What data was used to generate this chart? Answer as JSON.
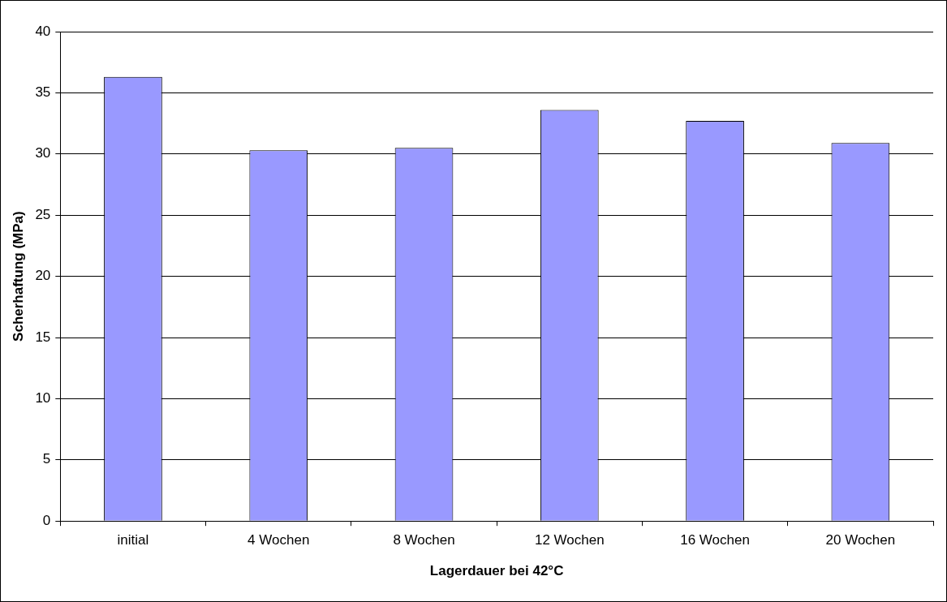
{
  "chart_data": {
    "type": "bar",
    "xlabel": "Lagerdauer bei 42°C",
    "ylabel": "Scherhaftung (MPa)",
    "categories": [
      "initial",
      "4 Wochen",
      "8 Wochen",
      "12 Wochen",
      "16 Wochen",
      "20 Wochen"
    ],
    "values": [
      36.3,
      30.3,
      30.5,
      33.6,
      32.7,
      30.9
    ],
    "color": "#9999ff",
    "ylim": [
      0,
      40
    ],
    "yticks": [
      0,
      5,
      10,
      15,
      20,
      25,
      30,
      35,
      40
    ],
    "grid": "y",
    "legend": false
  }
}
